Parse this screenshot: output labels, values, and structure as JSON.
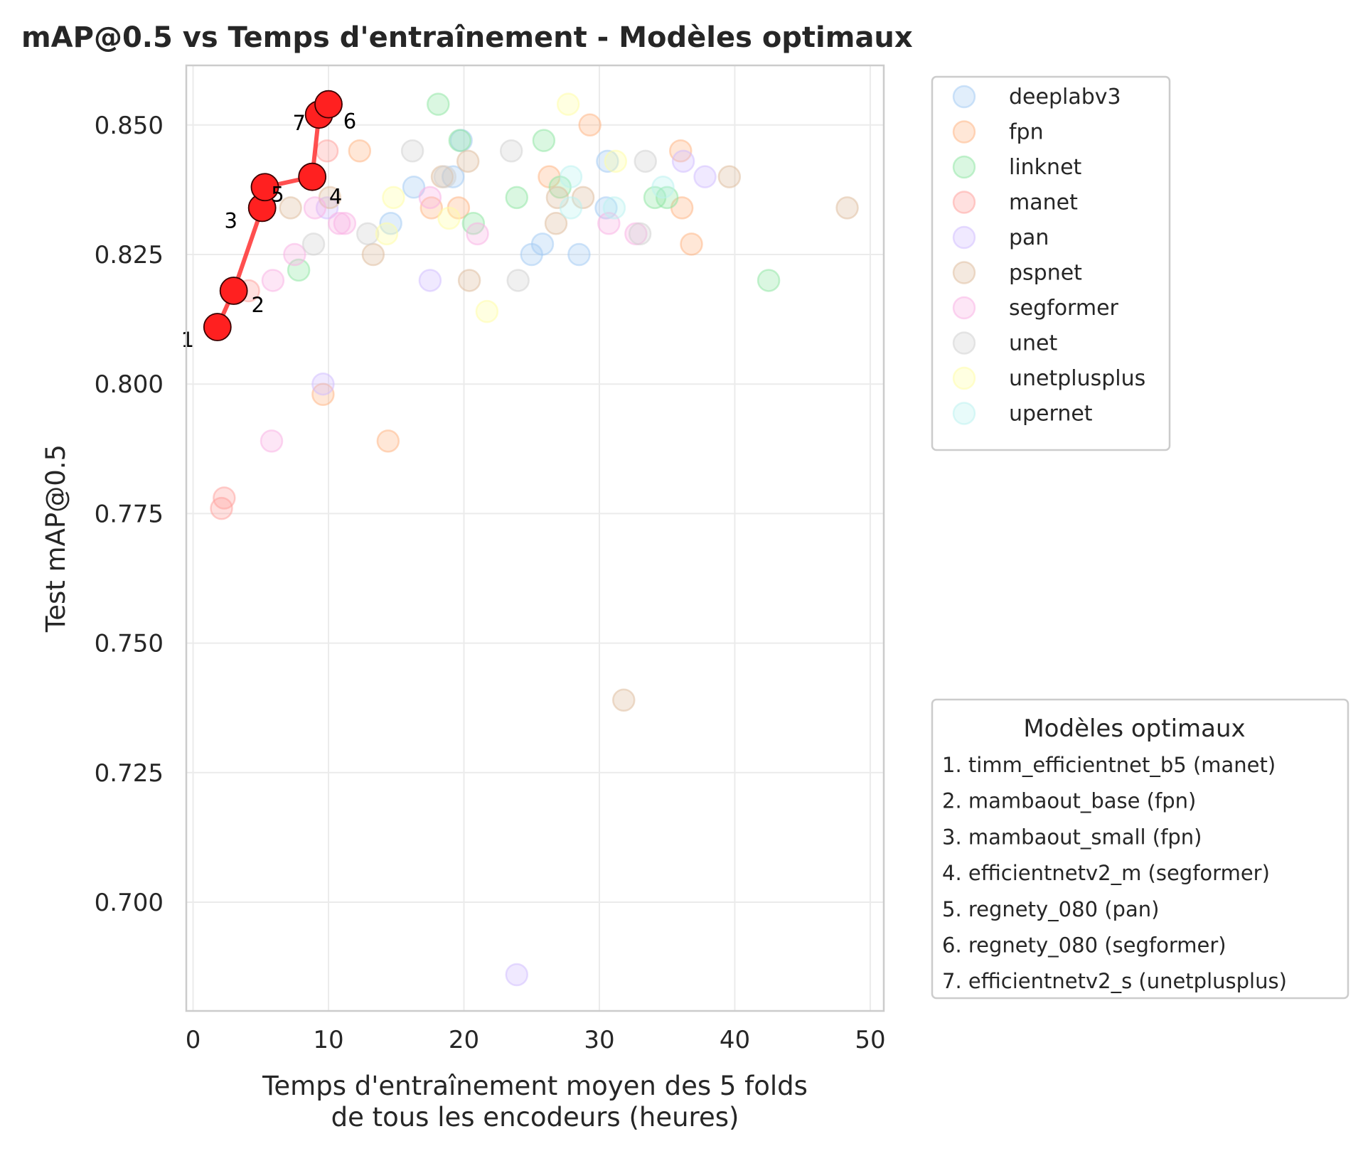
{
  "chart_data": {
    "type": "scatter",
    "title": "mAP@0.5 vs Temps d'entraînement - Modèles optimaux",
    "xlabel_lines": [
      "Temps d'entraînement moyen des 5 folds",
      "de tous les encodeurs (heures)"
    ],
    "ylabel": "Test mAP@0.5",
    "xlim": [
      -0.5,
      51
    ],
    "ylim": [
      0.679,
      0.8615
    ],
    "x_ticks": [
      0,
      10,
      20,
      30,
      40,
      50
    ],
    "y_ticks": [
      0.7,
      0.725,
      0.75,
      0.775,
      0.8,
      0.825,
      0.85
    ],
    "y_tick_labels": [
      "0.700",
      "0.725",
      "0.750",
      "0.775",
      "0.800",
      "0.825",
      "0.850"
    ],
    "grid": true,
    "legend_placement": "outside-upper-right",
    "series": [
      {
        "name": "deeplabv3",
        "color": "#a1c9f4",
        "points": [
          [
            14.6,
            0.831
          ],
          [
            16.3,
            0.838
          ],
          [
            19.2,
            0.84
          ],
          [
            19.8,
            0.847
          ],
          [
            25.0,
            0.825
          ],
          [
            25.8,
            0.827
          ],
          [
            28.5,
            0.825
          ],
          [
            30.5,
            0.834
          ],
          [
            30.6,
            0.843
          ]
        ]
      },
      {
        "name": "fpn",
        "color": "#ffb482",
        "points": [
          [
            12.3,
            0.845
          ],
          [
            9.6,
            0.798
          ],
          [
            14.4,
            0.789
          ],
          [
            17.6,
            0.834
          ],
          [
            19.6,
            0.834
          ],
          [
            26.3,
            0.84
          ],
          [
            29.3,
            0.85
          ],
          [
            36.0,
            0.845
          ],
          [
            36.1,
            0.834
          ],
          [
            36.8,
            0.827
          ]
        ]
      },
      {
        "name": "linknet",
        "color": "#8de5a1",
        "points": [
          [
            7.8,
            0.822
          ],
          [
            18.1,
            0.854
          ],
          [
            19.7,
            0.847
          ],
          [
            20.7,
            0.831
          ],
          [
            23.9,
            0.836
          ],
          [
            25.9,
            0.847
          ],
          [
            27.1,
            0.838
          ],
          [
            34.1,
            0.836
          ],
          [
            35.0,
            0.836
          ],
          [
            42.5,
            0.82
          ]
        ]
      },
      {
        "name": "manet",
        "color": "#ff9f9b",
        "points": [
          [
            2.1,
            0.776
          ],
          [
            2.3,
            0.778
          ],
          [
            4.1,
            0.818
          ],
          [
            9.9,
            0.845
          ]
        ]
      },
      {
        "name": "pan",
        "color": "#d0bbff",
        "points": [
          [
            9.6,
            0.8
          ],
          [
            9.9,
            0.834
          ],
          [
            17.5,
            0.82
          ],
          [
            23.9,
            0.686
          ],
          [
            36.2,
            0.843
          ],
          [
            37.8,
            0.84
          ]
        ]
      },
      {
        "name": "pspnet",
        "color": "#debb9b",
        "points": [
          [
            7.2,
            0.834
          ],
          [
            10.1,
            0.836
          ],
          [
            13.3,
            0.825
          ],
          [
            18.4,
            0.84
          ],
          [
            20.3,
            0.843
          ],
          [
            20.4,
            0.82
          ],
          [
            26.8,
            0.831
          ],
          [
            26.9,
            0.836
          ],
          [
            28.8,
            0.836
          ],
          [
            31.8,
            0.739
          ],
          [
            39.6,
            0.84
          ],
          [
            48.3,
            0.834
          ]
        ]
      },
      {
        "name": "segformer",
        "color": "#fab0e4",
        "points": [
          [
            5.8,
            0.789
          ],
          [
            5.9,
            0.82
          ],
          [
            7.5,
            0.825
          ],
          [
            9.0,
            0.834
          ],
          [
            10.8,
            0.831
          ],
          [
            11.2,
            0.831
          ],
          [
            17.5,
            0.836
          ],
          [
            21.0,
            0.829
          ],
          [
            30.7,
            0.831
          ],
          [
            32.7,
            0.829
          ]
        ]
      },
      {
        "name": "unet",
        "color": "#cfcfcf",
        "points": [
          [
            8.9,
            0.827
          ],
          [
            12.9,
            0.829
          ],
          [
            16.2,
            0.845
          ],
          [
            18.6,
            0.84
          ],
          [
            23.5,
            0.845
          ],
          [
            24.0,
            0.82
          ],
          [
            33.0,
            0.829
          ],
          [
            33.4,
            0.843
          ]
        ]
      },
      {
        "name": "unetplusplus",
        "color": "#fffea3",
        "points": [
          [
            14.3,
            0.829
          ],
          [
            14.8,
            0.836
          ],
          [
            18.9,
            0.832
          ],
          [
            21.7,
            0.814
          ],
          [
            27.7,
            0.854
          ],
          [
            31.2,
            0.843
          ]
        ]
      },
      {
        "name": "upernet",
        "color": "#b9f2f0",
        "points": [
          [
            27.9,
            0.84
          ],
          [
            27.9,
            0.834
          ],
          [
            31.1,
            0.834
          ],
          [
            34.7,
            0.838
          ]
        ]
      }
    ],
    "optimal_models": {
      "legend_title": "Modèles optimaux",
      "line_color": "#ff3030",
      "points": [
        {
          "label": "1",
          "x": 1.8,
          "y": 0.811,
          "name": "1. timm_efficientnet_b5 (manet)"
        },
        {
          "label": "2",
          "x": 3.0,
          "y": 0.818,
          "name": "2. mambaout_base (fpn)"
        },
        {
          "label": "3",
          "x": 5.1,
          "y": 0.834,
          "name": "3. mambaout_small (fpn)"
        },
        {
          "label": "5",
          "x": 5.3,
          "y": 0.838,
          "name": "5. regnety_080 (pan)"
        },
        {
          "label": "4",
          "x": 8.8,
          "y": 0.84,
          "name": "4. efficientnetv2_m (segformer)"
        },
        {
          "label": "7",
          "x": 9.3,
          "y": 0.852,
          "name": "7. efficientnetv2_s (unetplusplus)"
        },
        {
          "label": "6",
          "x": 10.0,
          "y": 0.854,
          "name": "6. regnety_080 (segformer)"
        }
      ],
      "legend_order": [
        "1. timm_efficientnet_b5 (manet)",
        "2. mambaout_base (fpn)",
        "3. mambaout_small (fpn)",
        "4. efficientnetv2_m (segformer)",
        "5. regnety_080 (pan)",
        "6. regnety_080 (segformer)",
        "7. efficientnetv2_s (unetplusplus)"
      ]
    }
  }
}
